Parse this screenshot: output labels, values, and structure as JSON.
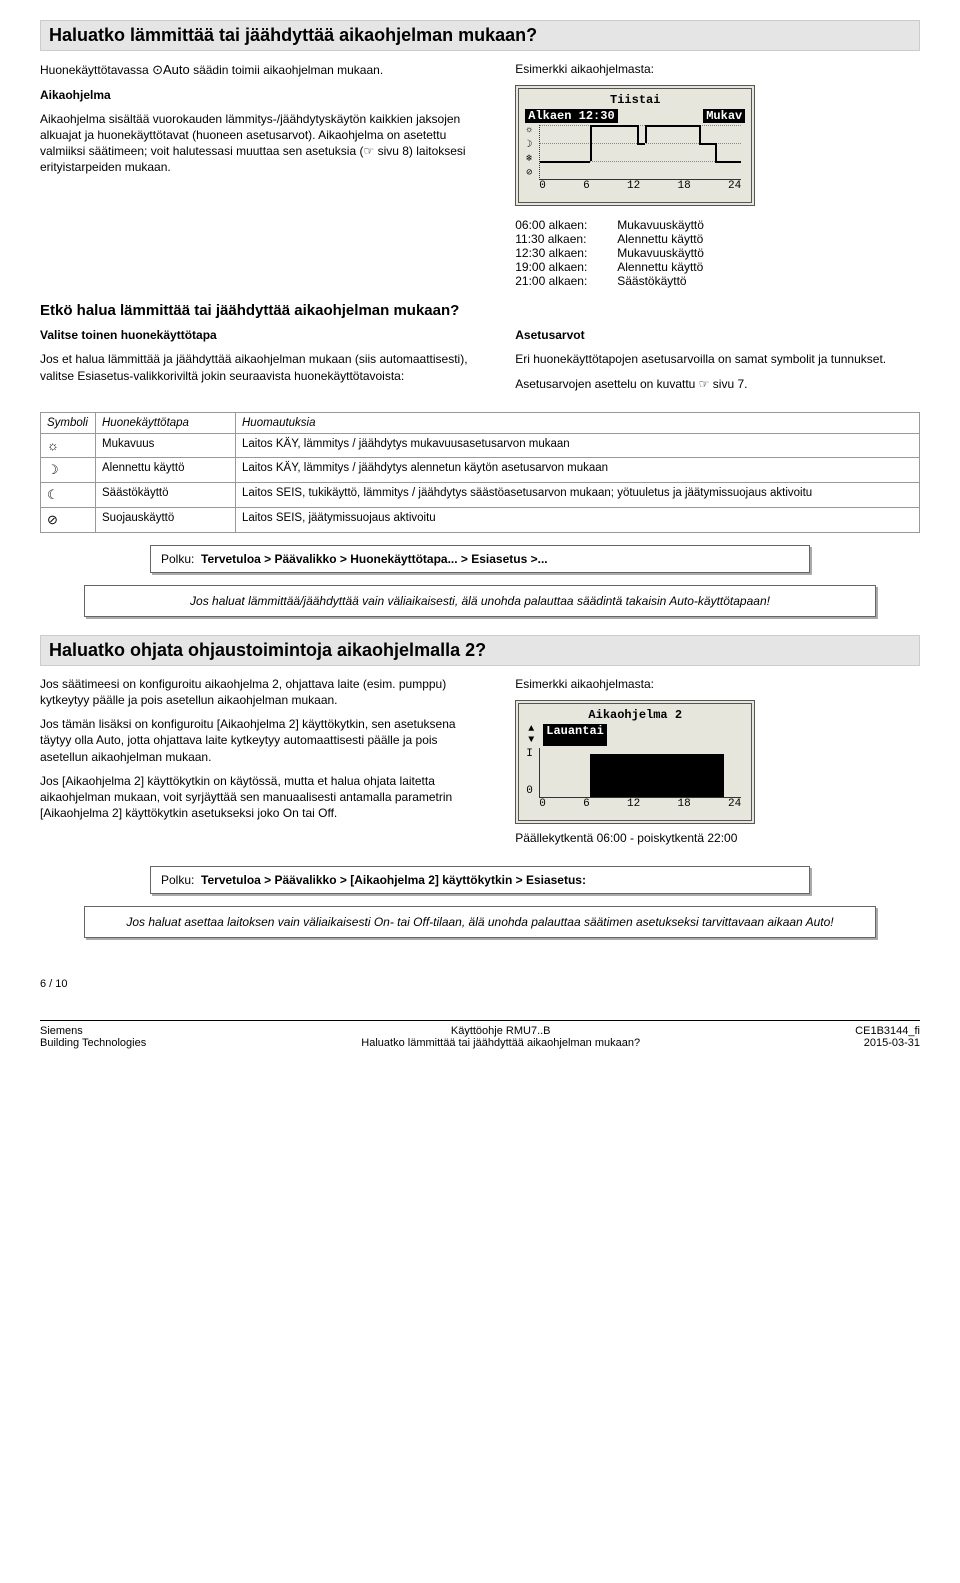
{
  "sec1": {
    "title": "Haluatko lämmittää tai jäähdyttää aikaohjelman mukaan?",
    "intro_p1_a": "Huonekäyttötavassa ",
    "intro_p1_auto": "⊙Auto",
    "intro_p1_b": " säädin toimii aikaohjelman mukaan.",
    "sub1_label": "Aikaohjelma",
    "sub1_p": "Aikaohjelma sisältää vuorokauden lämmitys-/jäähdytyskäytön kaikkien jaksojen alkuajat ja huonekäyttötavat (huoneen asetusarvot). Aikaohjelma on asetettu valmiiksi säätimeen; voit halutessasi muuttaa sen asetuksia (☞ sivu 8) laitoksesi erityistarpeiden mukaan.",
    "example_label": "Esimerkki aikaohjelmasta:",
    "lcd1": {
      "day": "Tiistai",
      "from": "Alkaen 12:30",
      "mode": "Mukav",
      "xticks": [
        "0",
        "6",
        "12",
        "18",
        "24"
      ],
      "yicons": [
        "☼",
        "☽",
        "❄",
        "⊘"
      ]
    },
    "schedule": [
      {
        "time": "06:00 alkaen:",
        "mode": "Mukavuuskäyttö"
      },
      {
        "time": "11:30 alkaen:",
        "mode": "Alennettu käyttö"
      },
      {
        "time": "12:30 alkaen:",
        "mode": "Mukavuuskäyttö"
      },
      {
        "time": "19:00 alkaen:",
        "mode": "Alennettu käyttö"
      },
      {
        "time": "21:00 alkaen:",
        "mode": "Säästökäyttö"
      }
    ]
  },
  "sec2": {
    "title": "Etkö halua lämmittää tai jäähdyttää aikaohjelman mukaan?",
    "left_label": "Valitse toinen huonekäyttötapa",
    "left_p": "Jos et halua lämmittää ja jäähdyttää aikaohjelman mukaan (siis automaattisesti), valitse Esiasetus-valikkoriviltä jokin seuraavista huonekäyttötavoista:",
    "right_label": "Asetusarvot",
    "right_p1": "Eri huonekäyttötapojen asetusarvoilla on samat symbolit ja tunnukset.",
    "right_p2": "Asetusarvojen asettelu on kuvattu ☞ sivu 7.",
    "table": {
      "headers": [
        "Symboli",
        "Huonekäyttötapa",
        "Huomautuksia"
      ],
      "rows": [
        {
          "sym": "☼",
          "mode": "Mukavuus",
          "note": "Laitos KÄY, lämmitys / jäähdytys mukavuusasetusarvon mukaan"
        },
        {
          "sym": "☽",
          "mode": "Alennettu käyttö",
          "note": "Laitos KÄY, lämmitys / jäähdytys alennetun käytön asetusarvon mukaan"
        },
        {
          "sym": "☾",
          "mode": "Säästökäyttö",
          "note": "Laitos SEIS, tukikäyttö, lämmitys / jäähdytys säästöasetusarvon mukaan; yötuuletus ja jäätymissuojaus aktivoitu"
        },
        {
          "sym": "⊘",
          "mode": "Suojauskäyttö",
          "note": "Laitos SEIS, jäätymissuojaus aktivoitu"
        }
      ]
    },
    "polku_label": "Polku:",
    "polku": "Tervetuloa > Päävalikko > Huonekäyttötapa... > Esiasetus >...",
    "note": "Jos haluat lämmittää/jäähdyttää vain väliaikaisesti, älä unohda palauttaa säädintä takaisin Auto-käyttötapaan!"
  },
  "sec3": {
    "title": "Haluatko ohjata ohjaustoimintoja aikaohjelmalla 2?",
    "p1": "Jos säätimeesi on konfiguroitu aikaohjelma 2, ohjattava laite (esim. pumppu) kytkeytyy päälle ja pois asetellun aikaohjelman mukaan.",
    "p2": "Jos tämän lisäksi on konfiguroitu [Aikaohjelma 2] käyttökytkin, sen asetuksena täytyy olla Auto, jotta ohjattava laite kytkeytyy automaattisesti päälle ja pois asetellun aikaohjelman mukaan.",
    "p3": "Jos [Aikaohjelma 2] käyttökytkin on käytössä, mutta et halua ohjata laitetta aikaohjelman mukaan, voit syrjäyttää sen manuaalisesti antamalla parametrin  [Aikaohjelma 2] käyttökytkin asetukseksi joko On tai Off.",
    "example_label": "Esimerkki aikaohjelmasta:",
    "lcd2": {
      "title": "Aikaohjelma 2",
      "day": "Lauantai",
      "xticks": [
        "0",
        "6",
        "12",
        "18",
        "24"
      ],
      "ylabels": [
        "I",
        "0"
      ],
      "bar_start_pct": 25,
      "bar_end_pct": 91.6
    },
    "caption": "Päällekytkentä 06:00 - poiskytkentä 22:00",
    "polku_label": "Polku:",
    "polku": "Tervetuloa > Päävalikko > [Aikaohjelma 2] käyttökytkin > Esiasetus:",
    "note": "Jos haluat asettaa laitoksen vain väliaikaisesti On- tai Off-tilaan, älä unohda palauttaa säätimen asetukseksi tarvittavaan aikaan Auto!"
  },
  "footer": {
    "page": "6 / 10",
    "left1": "Siemens",
    "left2": "Building Technologies",
    "mid1": "Käyttöohje RMU7..B",
    "mid2": "Haluatko lämmittää tai jäähdyttää aikaohjelman mukaan?",
    "right1": "CE1B3144_fi",
    "right2": "2015-03-31"
  },
  "colors": {
    "section_bg": "#e5e5e5",
    "border": "#999999",
    "lcd_bg": "#e6e6dc"
  }
}
